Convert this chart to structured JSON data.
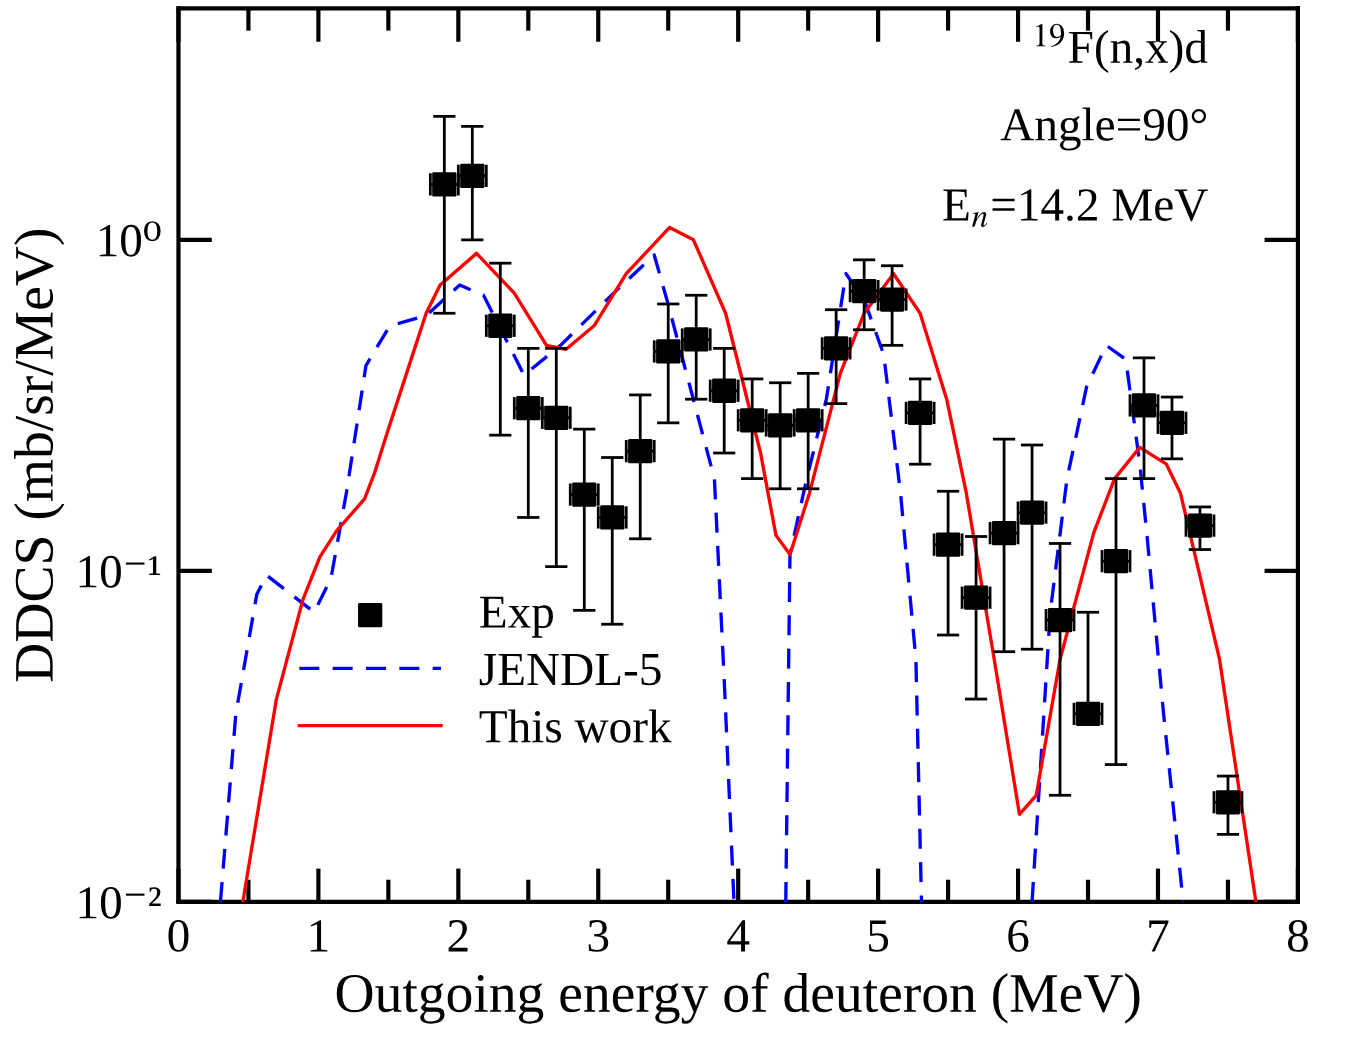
{
  "chart_data": {
    "type": "scatter",
    "xlabel": "Outgoing energy of deuteron (MeV)",
    "ylabel": "DDCS (mb/sr/MeV)",
    "log": "y",
    "xlim": [
      0,
      8
    ],
    "xticks": [
      0,
      1,
      2,
      3,
      4,
      5,
      6,
      7,
      8
    ],
    "ylim": [
      0.01,
      5
    ],
    "yticks": [
      {
        "value": 0.01,
        "label": "10⁻²"
      },
      {
        "value": 0.1,
        "label": "10⁻¹"
      },
      {
        "value": 1,
        "label": "10⁰"
      }
    ],
    "grid": false,
    "legend": "bottom left",
    "annotations": [
      "$^{19}$F(n,x)d",
      "Angle=90°",
      "E$_{n}$=14.2 MeV"
    ],
    "series": [
      {
        "name": "Exp",
        "marker": "square",
        "color": "#000000",
        "x": [
          1.9,
          2.1,
          2.3,
          2.5,
          2.7,
          2.9,
          3.1,
          3.3,
          3.5,
          3.7,
          3.9,
          4.1,
          4.3,
          4.5,
          4.7,
          4.9,
          5.1,
          5.3,
          5.5,
          5.7,
          5.9,
          6.1,
          6.3,
          6.5,
          6.7,
          6.9,
          7.1,
          7.3,
          7.5
        ],
        "values": [
          1.47,
          1.56,
          0.55,
          0.31,
          0.29,
          0.17,
          0.145,
          0.23,
          0.46,
          0.5,
          0.35,
          0.285,
          0.275,
          0.285,
          0.47,
          0.7,
          0.66,
          0.3,
          0.12,
          0.083,
          0.13,
          0.15,
          0.071,
          0.037,
          0.107,
          0.316,
          0.28,
          0.137,
          0.02
        ],
        "errors": [
          [
            0.6,
            2.36
          ],
          [
            1.0,
            2.2
          ],
          [
            0.257,
            0.85
          ],
          [
            0.145,
            0.47
          ],
          [
            0.103,
            0.47
          ],
          [
            0.076,
            0.268
          ],
          [
            0.069,
            0.22
          ],
          [
            0.125,
            0.34
          ],
          [
            0.28,
            0.64
          ],
          [
            0.33,
            0.68
          ],
          [
            0.227,
            0.47
          ],
          [
            0.19,
            0.38
          ],
          [
            0.177,
            0.37
          ],
          [
            0.177,
            0.395
          ],
          [
            0.32,
            0.615
          ],
          [
            0.535,
            0.87
          ],
          [
            0.48,
            0.835
          ],
          [
            0.21,
            0.38
          ],
          [
            0.064,
            0.174
          ],
          [
            0.041,
            0.127
          ],
          [
            0.057,
            0.25
          ],
          [
            0.058,
            0.24
          ],
          [
            0.021,
            0.121
          ],
          [
            0.037,
            0.075
          ],
          [
            0.026,
            0.19
          ],
          [
            0.19,
            0.44
          ],
          [
            0.218,
            0.335
          ],
          [
            0.116,
            0.156
          ],
          [
            0.016,
            0.024
          ]
        ],
        "xerrors": [
          0.1,
          0.1,
          0.1,
          0.1,
          0.1,
          0.1,
          0.1,
          0.1,
          0.1,
          0.1,
          0.1,
          0.1,
          0.1,
          0.1,
          0.1,
          0.1,
          0.1,
          0.1,
          0.1,
          0.1,
          0.1,
          0.1,
          0.1,
          0.1,
          0.1,
          0.1,
          0.1,
          0.1,
          0.1
        ]
      },
      {
        "name": "JENDL-5",
        "type": "line",
        "line_style": "dashed",
        "color": "#0000ff",
        "x": [
          0.3,
          0.41,
          0.56,
          0.63,
          0.97,
          1.09,
          1.2,
          1.34,
          1.51,
          1.77,
          2.01,
          2.18,
          2.47,
          2.73,
          3.11,
          3.4,
          3.49,
          3.83,
          3.9,
          3.97,
          4.15,
          4.34,
          4.37,
          4.49,
          4.63,
          4.77,
          4.9,
          5.04,
          5.16,
          5.27,
          5.31,
          5.7,
          6.1,
          6.23,
          6.35,
          6.49,
          6.63,
          6.77,
          6.87,
          6.92,
          7.04,
          7.18
        ],
        "values": [
          0.01,
          0.037,
          0.085,
          0.097,
          0.075,
          0.095,
          0.172,
          0.417,
          0.55,
          0.59,
          0.73,
          0.68,
          0.39,
          0.48,
          0.69,
          0.9,
          0.66,
          0.19,
          0.047,
          0.01,
          null,
          0.01,
          0.112,
          0.19,
          0.33,
          0.79,
          0.66,
          0.45,
          0.172,
          0.054,
          0.01,
          null,
          0.01,
          0.075,
          0.19,
          0.36,
          0.48,
          0.435,
          0.21,
          0.13,
          0.037,
          0.01
        ]
      },
      {
        "name": "This work",
        "type": "line",
        "line_style": "solid",
        "color": "#ff0000",
        "x": [
          0.46,
          0.7,
          0.89,
          1.01,
          1.13,
          1.33,
          1.4,
          1.49,
          1.63,
          1.77,
          1.87,
          2.13,
          2.4,
          2.63,
          2.77,
          2.97,
          3.2,
          3.51,
          3.68,
          3.91,
          4.16,
          4.27,
          4.37,
          4.51,
          4.73,
          4.9,
          5.11,
          5.3,
          5.49,
          5.63,
          5.83,
          6.01,
          6.13,
          6.3,
          6.54,
          6.69,
          6.87,
          7.06,
          7.16,
          7.44,
          7.7
        ],
        "values": [
          0.01,
          0.041,
          0.082,
          0.11,
          0.132,
          0.165,
          0.197,
          0.26,
          0.395,
          0.6,
          0.73,
          0.91,
          0.69,
          0.48,
          0.467,
          0.55,
          0.79,
          1.09,
          1.0,
          0.6,
          0.227,
          0.128,
          0.112,
          0.172,
          0.395,
          0.6,
          0.79,
          0.6,
          0.33,
          0.172,
          0.054,
          0.0184,
          0.021,
          0.054,
          0.13,
          0.19,
          0.236,
          0.21,
          0.172,
          0.054,
          0.01
        ]
      }
    ]
  }
}
